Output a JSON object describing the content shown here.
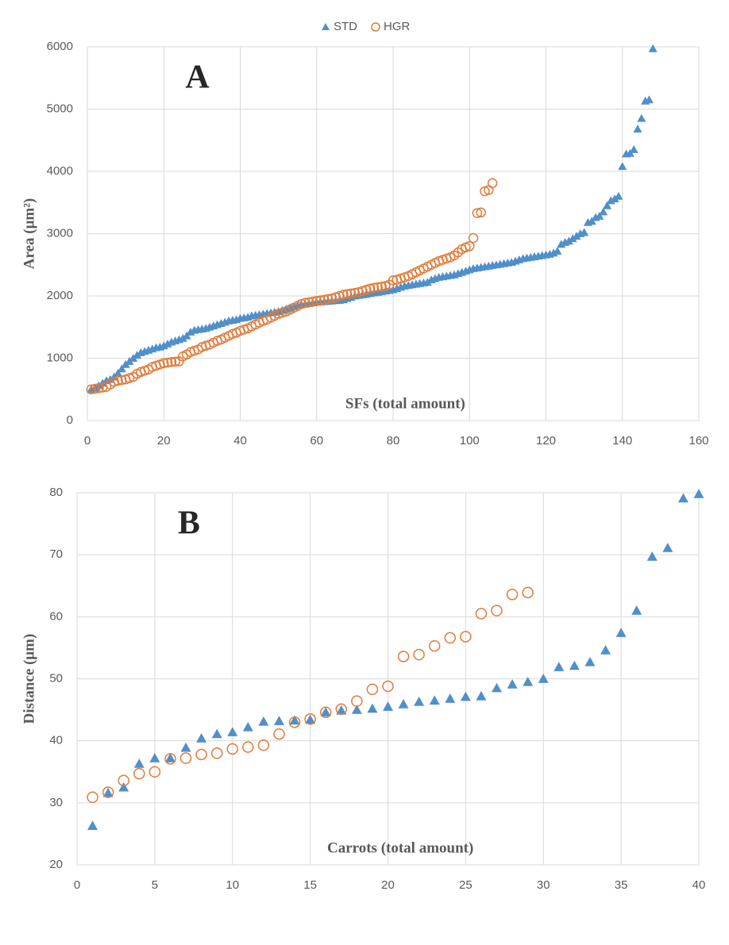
{
  "chart_data": [
    {
      "type": "scatter",
      "annotation": "A",
      "x_label": "SFs (total amount)",
      "y_label": "Area (μm²)",
      "legend": "top",
      "grid": true,
      "xlim": [
        0,
        160
      ],
      "xticks": [
        0,
        20,
        40,
        60,
        80,
        100,
        120,
        140,
        160
      ],
      "ylim": [
        0,
        6000
      ],
      "yticks": [
        0,
        1000,
        2000,
        3000,
        4000,
        5000,
        6000
      ],
      "series": [
        {
          "name": "STD",
          "color": "#4f8fcb",
          "marker": "triangle",
          "x": [
            1,
            2,
            3,
            4,
            5,
            6,
            7,
            8,
            9,
            10,
            11,
            12,
            13,
            14,
            15,
            16,
            17,
            18,
            19,
            20,
            21,
            22,
            23,
            24,
            25,
            26,
            27,
            28,
            29,
            30,
            31,
            32,
            33,
            34,
            35,
            36,
            37,
            38,
            39,
            40,
            41,
            42,
            43,
            44,
            45,
            46,
            47,
            48,
            49,
            50,
            51,
            52,
            53,
            54,
            55,
            56,
            57,
            58,
            59,
            60,
            61,
            62,
            63,
            64,
            65,
            66,
            67,
            68,
            69,
            70,
            71,
            72,
            73,
            74,
            75,
            76,
            77,
            78,
            79,
            80,
            81,
            82,
            83,
            84,
            85,
            86,
            87,
            88,
            89,
            90,
            91,
            92,
            93,
            94,
            95,
            96,
            97,
            98,
            99,
            100,
            101,
            102,
            103,
            104,
            105,
            106,
            107,
            108,
            109,
            110,
            111,
            112,
            113,
            114,
            115,
            116,
            117,
            118,
            119,
            120,
            121,
            122,
            123,
            124,
            125,
            126,
            127,
            128,
            129,
            130,
            131,
            132,
            133,
            134,
            135,
            136,
            137,
            138,
            139,
            140,
            141,
            142,
            143,
            144,
            145,
            146,
            147,
            148
          ],
          "values": [
            500,
            520,
            560,
            600,
            640,
            660,
            700,
            760,
            830,
            900,
            950,
            1000,
            1050,
            1090,
            1110,
            1130,
            1150,
            1170,
            1180,
            1200,
            1230,
            1260,
            1280,
            1300,
            1320,
            1360,
            1420,
            1450,
            1460,
            1470,
            1480,
            1500,
            1520,
            1540,
            1560,
            1580,
            1600,
            1610,
            1620,
            1640,
            1650,
            1660,
            1680,
            1690,
            1700,
            1710,
            1720,
            1730,
            1740,
            1750,
            1770,
            1790,
            1810,
            1830,
            1850,
            1860,
            1870,
            1880,
            1890,
            1900,
            1905,
            1910,
            1915,
            1920,
            1925,
            1930,
            1940,
            1960,
            1980,
            2000,
            2010,
            2020,
            2030,
            2040,
            2050,
            2060,
            2070,
            2080,
            2090,
            2100,
            2120,
            2140,
            2160,
            2170,
            2180,
            2190,
            2200,
            2210,
            2220,
            2260,
            2280,
            2300,
            2310,
            2320,
            2330,
            2340,
            2360,
            2380,
            2400,
            2420,
            2440,
            2450,
            2460,
            2470,
            2480,
            2490,
            2500,
            2510,
            2520,
            2530,
            2540,
            2560,
            2580,
            2600,
            2610,
            2620,
            2630,
            2640,
            2650,
            2660,
            2670,
            2690,
            2720,
            2830,
            2860,
            2880,
            2920,
            2960,
            3000,
            3020,
            3180,
            3200,
            3260,
            3280,
            3350,
            3450,
            3530,
            3560,
            3600,
            4080,
            4280,
            4290,
            4350,
            4680,
            4850,
            5130,
            5150,
            5970
          ]
        },
        {
          "name": "HGR",
          "color": "#e07b39",
          "marker": "circle",
          "x": [
            1,
            2,
            3,
            4,
            5,
            6,
            7,
            8,
            9,
            10,
            11,
            12,
            13,
            14,
            15,
            16,
            17,
            18,
            19,
            20,
            21,
            22,
            23,
            24,
            25,
            26,
            27,
            28,
            29,
            30,
            31,
            32,
            33,
            34,
            35,
            36,
            37,
            38,
            39,
            40,
            41,
            42,
            43,
            44,
            45,
            46,
            47,
            48,
            49,
            50,
            51,
            52,
            53,
            54,
            55,
            56,
            57,
            58,
            59,
            60,
            61,
            62,
            63,
            64,
            65,
            66,
            67,
            68,
            69,
            70,
            71,
            72,
            73,
            74,
            75,
            76,
            77,
            78,
            79,
            80,
            81,
            82,
            83,
            84,
            85,
            86,
            87,
            88,
            89,
            90,
            91,
            92,
            93,
            94,
            95,
            96,
            97,
            98,
            99,
            100,
            101,
            102,
            103,
            104,
            105,
            106
          ],
          "values": [
            500,
            510,
            520,
            530,
            540,
            580,
            620,
            640,
            650,
            660,
            680,
            700,
            750,
            780,
            800,
            820,
            860,
            880,
            900,
            920,
            930,
            940,
            945,
            950,
            1030,
            1060,
            1100,
            1120,
            1140,
            1180,
            1200,
            1220,
            1250,
            1280,
            1300,
            1330,
            1360,
            1390,
            1410,
            1440,
            1460,
            1480,
            1510,
            1540,
            1570,
            1600,
            1620,
            1650,
            1680,
            1710,
            1730,
            1750,
            1780,
            1810,
            1840,
            1870,
            1890,
            1900,
            1910,
            1920,
            1930,
            1940,
            1950,
            1960,
            1980,
            2000,
            2020,
            2030,
            2040,
            2050,
            2060,
            2080,
            2100,
            2120,
            2130,
            2140,
            2150,
            2160,
            2180,
            2250,
            2260,
            2280,
            2300,
            2320,
            2350,
            2380,
            2410,
            2440,
            2470,
            2500,
            2530,
            2560,
            2580,
            2600,
            2620,
            2650,
            2700,
            2750,
            2780,
            2800,
            2930,
            3330,
            3340,
            3680,
            3700,
            3810
          ]
        }
      ]
    },
    {
      "type": "scatter",
      "annotation": "B",
      "x_label": "Carrots (total amount)",
      "y_label": "Distance (μm)",
      "grid": true,
      "xlim": [
        0,
        40
      ],
      "xticks": [
        0,
        5,
        10,
        15,
        20,
        25,
        30,
        35,
        40
      ],
      "ylim": [
        20,
        80
      ],
      "yticks": [
        20,
        30,
        40,
        50,
        60,
        70,
        80
      ],
      "series": [
        {
          "color": "#4f8fcb",
          "marker": "triangle",
          "x": [
            1,
            2,
            3,
            4,
            5,
            6,
            7,
            8,
            9,
            10,
            11,
            12,
            13,
            14,
            15,
            16,
            17,
            18,
            19,
            20,
            21,
            22,
            23,
            24,
            25,
            26,
            27,
            28,
            29,
            30,
            31,
            32,
            33,
            34,
            35,
            36,
            37,
            38,
            39,
            40
          ],
          "values": [
            26.3,
            31.6,
            32.5,
            36.3,
            37.2,
            37.2,
            38.9,
            40.4,
            41.1,
            41.4,
            42.2,
            43.1,
            43.2,
            43.3,
            43.4,
            44.6,
            44.9,
            45.0,
            45.2,
            45.5,
            45.9,
            46.3,
            46.5,
            46.8,
            47.1,
            47.2,
            48.5,
            49.1,
            49.5,
            50.0,
            51.9,
            52.1,
            52.7,
            54.6,
            57.4,
            61.0,
            69.7,
            71.1,
            79.1,
            79.8
          ]
        },
        {
          "color": "#e07b39",
          "marker": "circle",
          "x": [
            1,
            2,
            3,
            4,
            5,
            6,
            7,
            8,
            9,
            10,
            11,
            12,
            13,
            14,
            15,
            16,
            17,
            18,
            19,
            20,
            21,
            22,
            23,
            24,
            25,
            26,
            27,
            28,
            29
          ],
          "values": [
            30.9,
            31.7,
            33.6,
            34.7,
            35.0,
            37.1,
            37.2,
            37.8,
            38.0,
            38.7,
            39.0,
            39.3,
            41.1,
            43.0,
            43.5,
            44.6,
            45.1,
            46.4,
            48.3,
            48.8,
            53.6,
            53.9,
            55.3,
            56.6,
            56.8,
            60.5,
            61.0,
            63.6,
            63.9
          ]
        }
      ]
    }
  ]
}
